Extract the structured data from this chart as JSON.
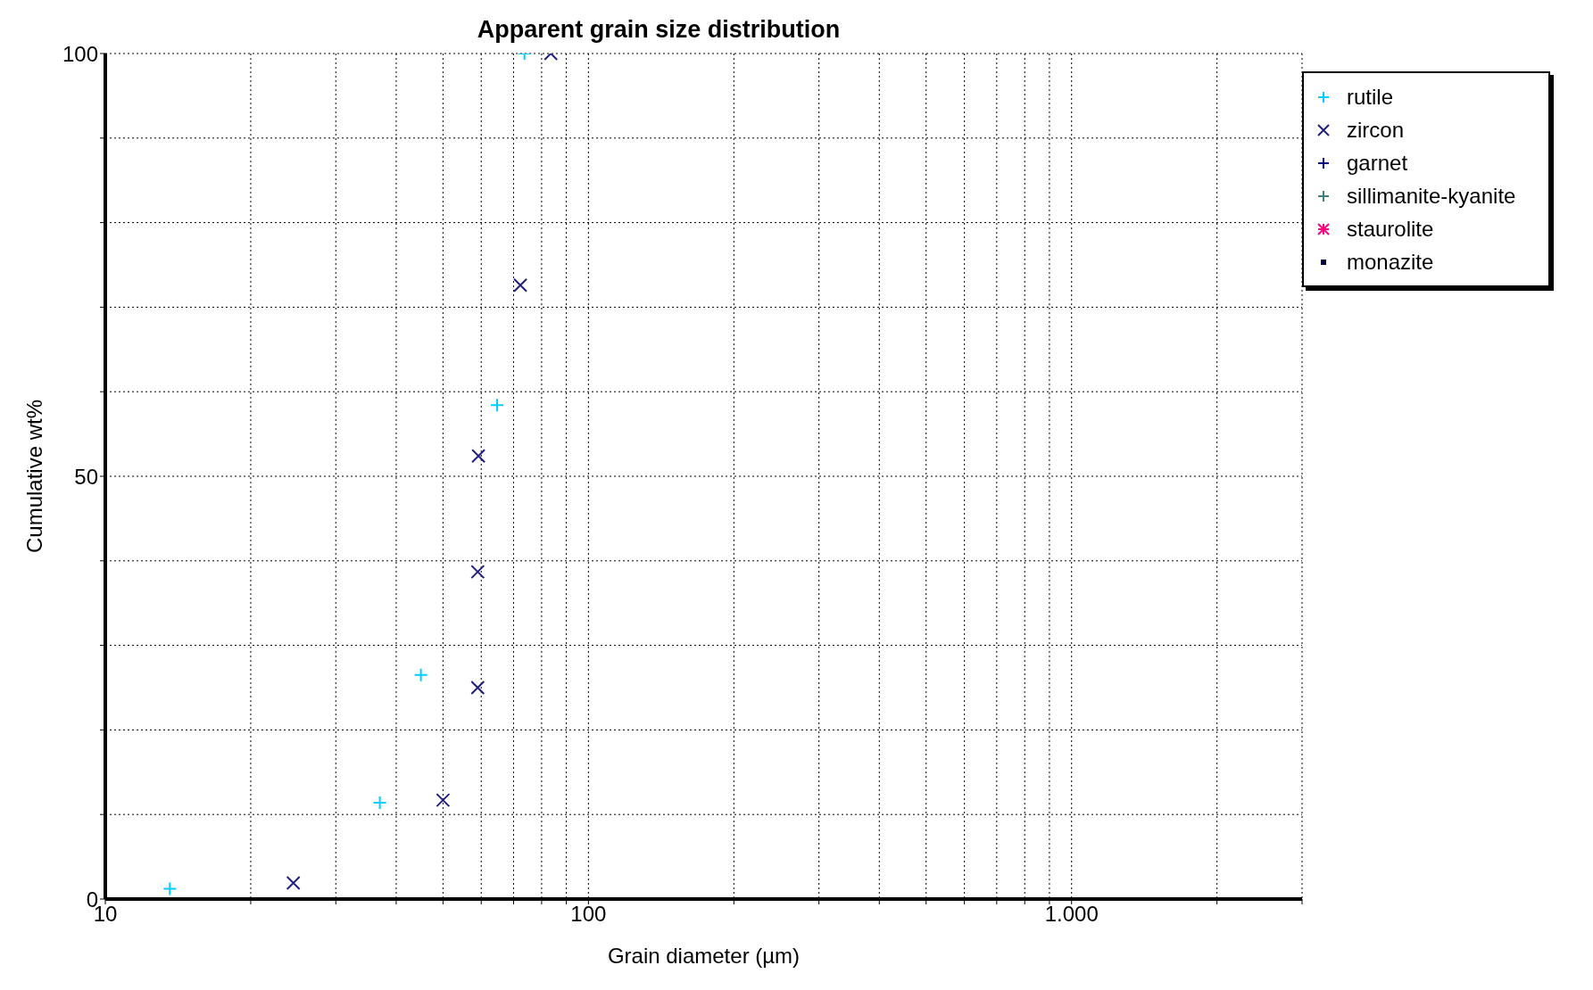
{
  "chart_data": {
    "type": "scatter",
    "title": "Apparent grain size distribution",
    "xlabel": "Grain diameter (µm)",
    "ylabel": "Cumulative wt%",
    "log": "x",
    "xlim": [
      10,
      3000
    ],
    "xticks": [
      10,
      {
        "value": 20,
        "label": null
      },
      {
        "value": 30,
        "label": null
      },
      {
        "value": 40,
        "label": null
      },
      {
        "value": 50,
        "label": null
      },
      {
        "value": 60,
        "label": null
      },
      {
        "value": 70,
        "label": null
      },
      {
        "value": 80,
        "label": null
      },
      {
        "value": 90,
        "label": null
      },
      100,
      {
        "value": 200,
        "label": null
      },
      {
        "value": 300,
        "label": null
      },
      {
        "value": 400,
        "label": null
      },
      {
        "value": 500,
        "label": null
      },
      {
        "value": 600,
        "label": null
      },
      {
        "value": 700,
        "label": null
      },
      {
        "value": 800,
        "label": null
      },
      {
        "value": 900,
        "label": null
      },
      {
        "value": 1000,
        "label": "1.000"
      },
      {
        "value": 2000,
        "label": null
      },
      {
        "value": 3000,
        "label": null
      }
    ],
    "ylim": [
      0,
      100
    ],
    "yticks": [
      0,
      {
        "value": 10,
        "label": null
      },
      {
        "value": 20,
        "label": null
      },
      {
        "value": 30,
        "label": null
      },
      {
        "value": 40,
        "label": null
      },
      50,
      {
        "value": 60,
        "label": null
      },
      {
        "value": 70,
        "label": null
      },
      {
        "value": 80,
        "label": null
      },
      {
        "value": 90,
        "label": null
      },
      100
    ],
    "grid": true,
    "legend": "top right",
    "series": [
      {
        "name": "rutile",
        "color": "#00ccff",
        "marker": "cross",
        "x": [
          13.6,
          37,
          45,
          64.7,
          73.7
        ],
        "values": [
          1.2,
          11.4,
          26.5,
          58.4,
          100
        ]
      },
      {
        "name": "zircon",
        "color": "#202080",
        "marker": "x",
        "x": [
          24.5,
          50,
          59,
          59,
          59.2,
          72.3,
          83.6
        ],
        "values": [
          1.9,
          11.7,
          25,
          38.7,
          52.4,
          72.6,
          100
        ]
      },
      {
        "name": "garnet",
        "color": "#000080",
        "marker": "cross"
      },
      {
        "name": "sillimanite-kyanite",
        "color": "#408080",
        "marker": "cross"
      },
      {
        "name": "staurolite",
        "color": "#ff0080",
        "marker": "star"
      },
      {
        "name": "monazite",
        "color": "#000040",
        "marker": "square"
      }
    ]
  }
}
